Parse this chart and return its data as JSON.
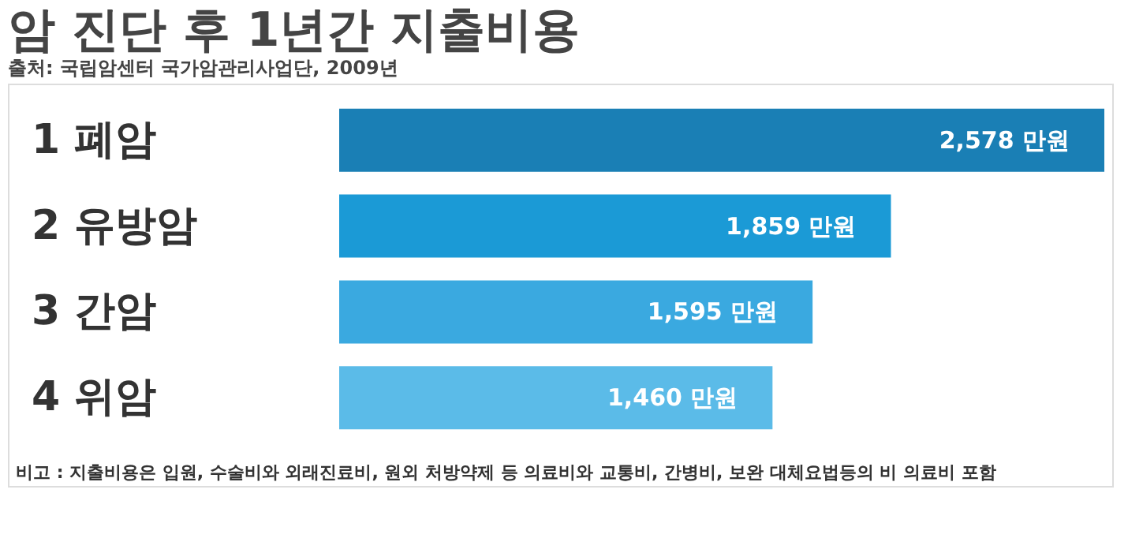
{
  "chart_data": {
    "type": "bar",
    "orientation": "horizontal",
    "title": "암 진단 후 1년간 지출비용",
    "subtitle": "출처: 국립암센터 국가암관리사업단, 2009년",
    "categories": [
      "1 폐암",
      "2 유방암",
      "3 간암",
      "4 위암"
    ],
    "values": [
      2578,
      1859,
      1595,
      1460
    ],
    "value_labels": [
      "2,578 만원",
      "1,859 만원",
      "1,595 만원",
      "1,460 만원"
    ],
    "colors": [
      "#1a7fb5",
      "#1b9ad6",
      "#3aa9e0",
      "#5bbbe8"
    ],
    "annotations": [
      "비고 : 지출비용은 입원, 수술비와 외래진료비, 원외 처방약제 등 의료비와 교통비, 간병비, 보완 대체요법등의 비 의료비 포함"
    ],
    "grid": false
  }
}
